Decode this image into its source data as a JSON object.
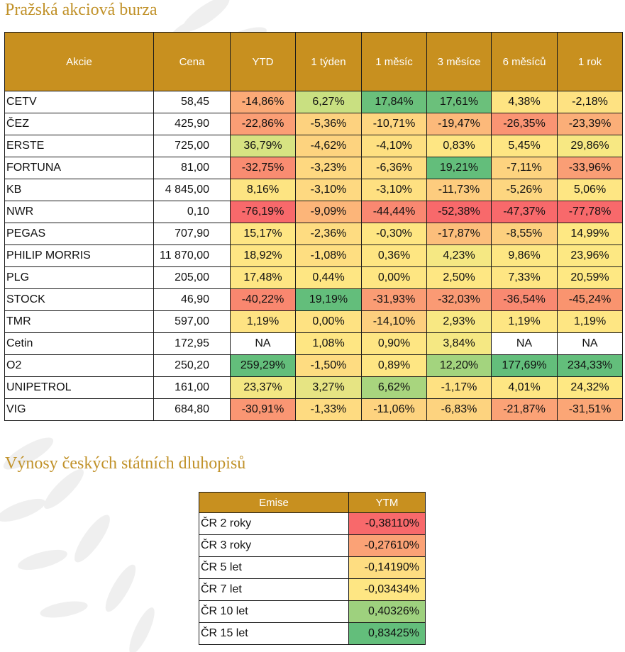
{
  "stocks": {
    "title": "Pražská akciová burza",
    "headers": [
      "Akcie",
      "Cena",
      "YTD",
      "1 týden",
      "1 měsíc",
      "3 měsíce",
      "6 měsíců",
      "1 rok"
    ],
    "rows": [
      {
        "name": "CETV",
        "price": "58,45",
        "cells": [
          [
            "-14,86%",
            "#fbaa77"
          ],
          [
            "6,27%",
            "#c9e081"
          ],
          [
            "17,84%",
            "#6ac07b"
          ],
          [
            "17,61%",
            "#6bc07b"
          ],
          [
            "4,38%",
            "#fee482"
          ],
          [
            "-2,18%",
            "#fee282"
          ]
        ]
      },
      {
        "name": "ČEZ",
        "price": "425,90",
        "cells": [
          [
            "-22,86%",
            "#fb9e75"
          ],
          [
            "-5,36%",
            "#fdd27f"
          ],
          [
            "-10,71%",
            "#fed680"
          ],
          [
            "-19,47%",
            "#fcb97a"
          ],
          [
            "-26,35%",
            "#fa9473"
          ],
          [
            "-23,39%",
            "#fbae78"
          ]
        ]
      },
      {
        "name": "ERSTE",
        "price": "725,00",
        "cells": [
          [
            "36,79%",
            "#d7e382"
          ],
          [
            "-4,62%",
            "#fdd37f"
          ],
          [
            "-4,10%",
            "#fee081"
          ],
          [
            "0,83%",
            "#fee683"
          ],
          [
            "5,45%",
            "#fee683"
          ],
          [
            "29,86%",
            "#f7e883"
          ]
        ]
      },
      {
        "name": "FORTUNA",
        "price": "81,00",
        "cells": [
          [
            "-32,75%",
            "#f98c71"
          ],
          [
            "-3,23%",
            "#fed880"
          ],
          [
            "-6,36%",
            "#fedd81"
          ],
          [
            "19,21%",
            "#63be7b"
          ],
          [
            "-7,11%",
            "#fdd37f"
          ],
          [
            "-33,96%",
            "#fa9e75"
          ]
        ]
      },
      {
        "name": "KB",
        "price": "4 845,00",
        "cells": [
          [
            "8,16%",
            "#fde482"
          ],
          [
            "-3,10%",
            "#fed981"
          ],
          [
            "-3,10%",
            "#fee081"
          ],
          [
            "-11,73%",
            "#fdcc7e"
          ],
          [
            "-5,26%",
            "#fdd680"
          ],
          [
            "5,06%",
            "#fee683"
          ]
        ]
      },
      {
        "name": "NWR",
        "price": "0,10",
        "cells": [
          [
            "-76,19%",
            "#f8696b"
          ],
          [
            "-9,09%",
            "#fcb579"
          ],
          [
            "-44,44%",
            "#f98871"
          ],
          [
            "-52,38%",
            "#f8696b"
          ],
          [
            "-47,37%",
            "#f8696b"
          ],
          [
            "-77,78%",
            "#f8696b"
          ]
        ]
      },
      {
        "name": "PEGAS",
        "price": "707,90",
        "cells": [
          [
            "15,17%",
            "#fee683"
          ],
          [
            "-2,36%",
            "#fedc81"
          ],
          [
            "-0,30%",
            "#fee682"
          ],
          [
            "-17,87%",
            "#fcbe7b"
          ],
          [
            "-8,55%",
            "#fdd07e"
          ],
          [
            "14,99%",
            "#fee883"
          ]
        ]
      },
      {
        "name": "PHILIP MORRIS",
        "price": "11 870,00",
        "cells": [
          [
            "18,92%",
            "#fee683"
          ],
          [
            "-1,08%",
            "#fede81"
          ],
          [
            "0,36%",
            "#fee682"
          ],
          [
            "4,23%",
            "#f5e883"
          ],
          [
            "9,86%",
            "#fde783"
          ],
          [
            "23,96%",
            "#fde883"
          ]
        ]
      },
      {
        "name": "PLG",
        "price": "205,00",
        "cells": [
          [
            "17,48%",
            "#fee683"
          ],
          [
            "0,44%",
            "#fee683"
          ],
          [
            "0,00%",
            "#fee682"
          ],
          [
            "2,50%",
            "#fee783"
          ],
          [
            "7,33%",
            "#fee683"
          ],
          [
            "20,59%",
            "#fee883"
          ]
        ]
      },
      {
        "name": "STOCK",
        "price": "46,90",
        "cells": [
          [
            "-40,22%",
            "#f9876f"
          ],
          [
            "19,19%",
            "#63be7b"
          ],
          [
            "-31,93%",
            "#fa9c74"
          ],
          [
            "-32,03%",
            "#fa9a74"
          ],
          [
            "-36,54%",
            "#f98971"
          ],
          [
            "-45,24%",
            "#f9946f"
          ]
        ]
      },
      {
        "name": "TMR",
        "price": "597,00",
        "cells": [
          [
            "1,19%",
            "#fee383"
          ],
          [
            "0,00%",
            "#fee282"
          ],
          [
            "-14,10%",
            "#fdcf7e"
          ],
          [
            "2,93%",
            "#f8e883"
          ],
          [
            "1,19%",
            "#fee683"
          ],
          [
            "1,19%",
            "#fee683"
          ]
        ]
      },
      {
        "name": "Cetin",
        "price": "172,95",
        "cells": [
          [
            "NA",
            "#ffffff"
          ],
          [
            "1,08%",
            "#fee683"
          ],
          [
            "0,90%",
            "#fee683"
          ],
          [
            "3,84%",
            "#f5e883"
          ],
          [
            "NA",
            "#ffffff"
          ],
          [
            "NA",
            "#ffffff"
          ]
        ]
      },
      {
        "name": "O2",
        "price": "250,20",
        "cells": [
          [
            "259,29%",
            "#63be7b"
          ],
          [
            "-1,50%",
            "#fedc81"
          ],
          [
            "0,89%",
            "#fee683"
          ],
          [
            "12,20%",
            "#a3d47e"
          ],
          [
            "177,69%",
            "#63be7b"
          ],
          [
            "234,33%",
            "#63be7b"
          ]
        ]
      },
      {
        "name": "UNIPETROL",
        "price": "161,00",
        "cells": [
          [
            "23,37%",
            "#f3e783"
          ],
          [
            "3,27%",
            "#e6e483"
          ],
          [
            "6,62%",
            "#a8d57e"
          ],
          [
            "-1,17%",
            "#fee182"
          ],
          [
            "4,01%",
            "#fee683"
          ],
          [
            "24,32%",
            "#fee883"
          ]
        ]
      },
      {
        "name": "VIG",
        "price": "684,80",
        "cells": [
          [
            "-30,91%",
            "#fa9673"
          ],
          [
            "-1,33%",
            "#fedb81"
          ],
          [
            "-11,06%",
            "#fdd37f"
          ],
          [
            "-6,83%",
            "#fdd37f"
          ],
          [
            "-21,87%",
            "#fba276"
          ],
          [
            "-31,51%",
            "#fba676"
          ]
        ]
      }
    ]
  },
  "bonds": {
    "title": "Výnosy českých státních dluhopisů",
    "headers": [
      "Emise",
      "YTM"
    ],
    "rows": [
      {
        "name": "ČR 2 roky",
        "value": "-0,38110%",
        "color": "#f8696b"
      },
      {
        "name": "ČR 3 roky",
        "value": "-0,27610%",
        "color": "#fba276"
      },
      {
        "name": "ČR 5 let",
        "value": "-0,14190%",
        "color": "#fedd81"
      },
      {
        "name": "ČR 7 let",
        "value": "-0,03434%",
        "color": "#fee683"
      },
      {
        "name": "ČR 10 let",
        "value": "0,40326%",
        "color": "#9ed17e"
      },
      {
        "name": "ČR 15 let",
        "value": "0,83425%",
        "color": "#63be7b"
      }
    ]
  }
}
